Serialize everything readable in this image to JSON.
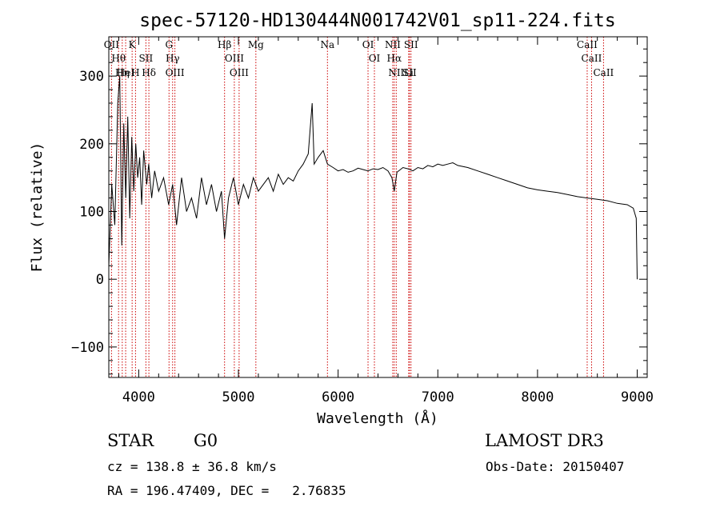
{
  "chart_data": {
    "type": "line",
    "title": "spec-57120-HD130444N001742V01_sp11-224.fits",
    "xlabel": "Wavelength (Å)",
    "ylabel": "Flux (relative)",
    "xlim": [
      3700,
      9100
    ],
    "ylim": [
      -145,
      358
    ],
    "xticks": [
      4000,
      5000,
      6000,
      7000,
      8000,
      9000
    ],
    "yticks": [
      -100,
      0,
      100,
      200,
      300
    ],
    "xtick_labels": [
      "4000",
      "5000",
      "6000",
      "7000",
      "8000",
      "9000"
    ],
    "ytick_labels": [
      "−100",
      "0",
      "100",
      "200",
      "300"
    ],
    "series": [
      {
        "name": "flux",
        "x": [
          3700,
          3730,
          3760,
          3790,
          3810,
          3830,
          3850,
          3870,
          3890,
          3910,
          3930,
          3950,
          3970,
          3990,
          4010,
          4030,
          4050,
          4080,
          4100,
          4130,
          4160,
          4200,
          4250,
          4300,
          4340,
          4380,
          4430,
          4480,
          4530,
          4580,
          4630,
          4680,
          4730,
          4780,
          4830,
          4861,
          4900,
          4950,
          5000,
          5050,
          5100,
          5150,
          5200,
          5250,
          5300,
          5350,
          5400,
          5450,
          5500,
          5550,
          5600,
          5650,
          5700,
          5740,
          5760,
          5800,
          5850,
          5893,
          5950,
          6000,
          6050,
          6100,
          6150,
          6200,
          6250,
          6300,
          6350,
          6400,
          6450,
          6500,
          6540,
          6563,
          6590,
          6650,
          6700,
          6750,
          6800,
          6850,
          6900,
          6950,
          7000,
          7050,
          7100,
          7150,
          7200,
          7300,
          7400,
          7500,
          7600,
          7700,
          7800,
          7900,
          8000,
          8100,
          8200,
          8300,
          8400,
          8500,
          8600,
          8700,
          8800,
          8900,
          8960,
          8990,
          9000
        ],
        "y": [
          20,
          140,
          80,
          260,
          300,
          50,
          230,
          120,
          240,
          90,
          210,
          130,
          200,
          150,
          180,
          110,
          190,
          140,
          170,
          120,
          160,
          130,
          150,
          110,
          140,
          80,
          150,
          100,
          120,
          90,
          150,
          110,
          140,
          100,
          130,
          60,
          120,
          150,
          110,
          140,
          120,
          150,
          130,
          140,
          150,
          130,
          155,
          140,
          150,
          145,
          160,
          170,
          185,
          260,
          170,
          180,
          190,
          170,
          165,
          160,
          162,
          158,
          160,
          164,
          162,
          160,
          163,
          162,
          165,
          160,
          150,
          130,
          158,
          165,
          163,
          160,
          165,
          163,
          168,
          166,
          170,
          168,
          170,
          172,
          168,
          165,
          160,
          155,
          150,
          145,
          140,
          135,
          132,
          130,
          128,
          125,
          122,
          120,
          118,
          116,
          112,
          110,
          105,
          90,
          0
        ]
      }
    ],
    "line_markers": [
      {
        "wl": 3727,
        "label": "OII"
      },
      {
        "wl": 3798,
        "label": "Hθ"
      },
      {
        "wl": 3835,
        "label": "Hη"
      },
      {
        "wl": 3869,
        "label": "HeI"
      },
      {
        "wl": 3934,
        "label": "K"
      },
      {
        "wl": 3968,
        "label": "H"
      },
      {
        "wl": 4072,
        "label": "SII"
      },
      {
        "wl": 4102,
        "label": "Hδ"
      },
      {
        "wl": 4304,
        "label": "G"
      },
      {
        "wl": 4340,
        "label": "Hγ"
      },
      {
        "wl": 4363,
        "label": "OIII"
      },
      {
        "wl": 4861,
        "label": "Hβ"
      },
      {
        "wl": 4959,
        "label": "OIII"
      },
      {
        "wl": 5007,
        "label": "OIII"
      },
      {
        "wl": 5175,
        "label": "Mg"
      },
      {
        "wl": 5893,
        "label": "Na"
      },
      {
        "wl": 6300,
        "label": "OI"
      },
      {
        "wl": 6364,
        "label": "OI"
      },
      {
        "wl": 6548,
        "label": "NII"
      },
      {
        "wl": 6563,
        "label": "Hα"
      },
      {
        "wl": 6583,
        "label": "NII"
      },
      {
        "wl": 6708,
        "label": "Li"
      },
      {
        "wl": 6716,
        "label": "SII"
      },
      {
        "wl": 6731,
        "label": "SII"
      },
      {
        "wl": 8498,
        "label": "CaII"
      },
      {
        "wl": 8542,
        "label": "CaII"
      },
      {
        "wl": 8662,
        "label": "CaII"
      }
    ],
    "line_marker_color": "#cc0000",
    "line_color": "#000000"
  },
  "info": {
    "class": "STAR",
    "subclass": "G0",
    "survey": "LAMOST DR3",
    "redshift": "cz = 138.8 ± 36.8 km/s",
    "obs_date": "Obs-Date: 20150407",
    "coords": "RA = 196.47409, DEC =   2.76835"
  }
}
